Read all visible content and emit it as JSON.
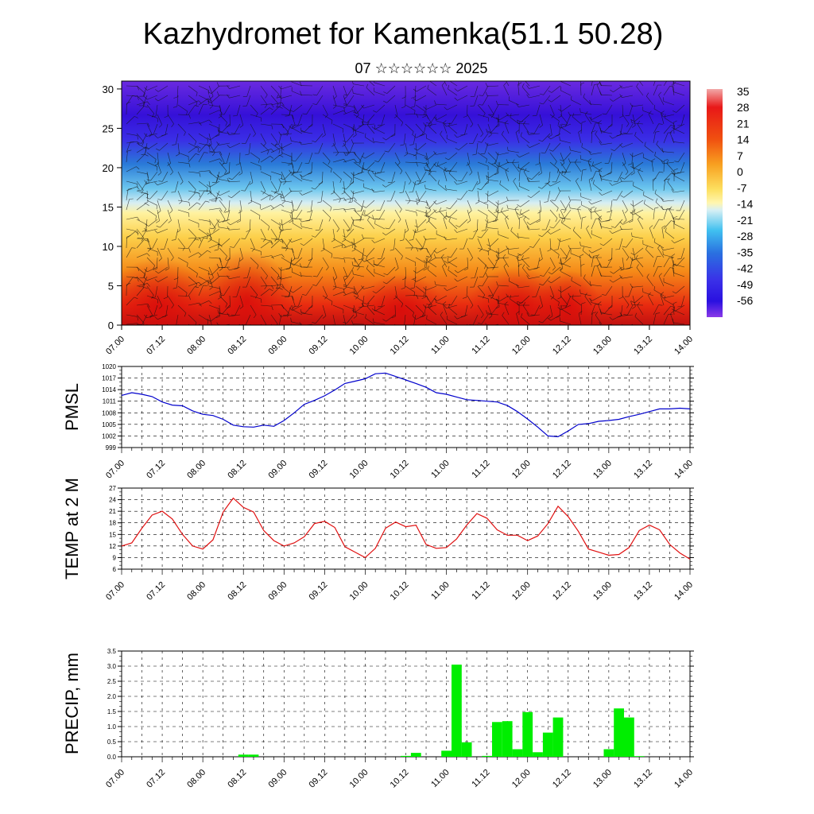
{
  "title": "Kazhydromet for Kamenka(51.1 50.28)",
  "subtitle": "07 ☆☆☆☆☆☆ 2025",
  "time_ticks": [
    "07.00",
    "07.12",
    "08.00",
    "08.12",
    "09.00",
    "09.12",
    "10.00",
    "10.12",
    "11.00",
    "11.12",
    "12.00",
    "12.12",
    "13.00",
    "13.12",
    "14.00"
  ],
  "chart_data": [
    {
      "type": "heatmap",
      "title": "Kazhydromet for Kamenka(51.1 50.28)",
      "subtitle": "07 ☆☆☆☆☆☆ 2025",
      "x_ticks": [
        "07.00",
        "07.12",
        "08.00",
        "08.12",
        "09.00",
        "09.12",
        "10.00",
        "10.12",
        "11.00",
        "11.12",
        "12.00",
        "12.12",
        "13.00",
        "13.12",
        "14.00"
      ],
      "y_ticks": [
        0,
        5,
        10,
        15,
        20,
        25,
        30
      ],
      "ylim": [
        0,
        31
      ],
      "colorbar_labels": [
        "35",
        "28",
        "21",
        "14",
        "7",
        "0",
        "-7",
        "-14",
        "-21",
        "-28",
        "-35",
        "-42",
        "-49",
        "-56"
      ],
      "overlay": "wind barbs",
      "colors": {
        "warm": "#e01010",
        "mid": "#ffe566",
        "cold": "#4a1ae6"
      }
    },
    {
      "type": "line",
      "ylabel": "PMSL",
      "ylim": [
        999,
        1020
      ],
      "y_ticks": [
        999,
        1002,
        1005,
        1008,
        1011,
        1014,
        1017,
        1020
      ],
      "x_ticks": [
        "07.00",
        "07.12",
        "08.00",
        "08.12",
        "09.00",
        "09.12",
        "10.00",
        "10.12",
        "11.00",
        "11.12",
        "12.00",
        "12.12",
        "13.00",
        "13.12",
        "14.00"
      ],
      "color": "#0000cc",
      "grid": true,
      "x_hours": [
        0,
        3,
        6,
        9,
        12,
        15,
        18,
        21,
        24,
        27,
        30,
        33,
        36,
        39,
        42,
        45,
        48,
        51,
        54,
        57,
        60,
        63,
        66,
        69,
        72,
        75,
        78,
        81,
        84,
        87,
        90,
        93,
        96,
        99,
        102,
        105,
        108,
        111,
        114,
        117,
        120,
        123,
        126,
        129,
        132,
        135,
        138,
        141,
        144,
        147,
        150,
        153,
        156,
        159,
        162,
        165,
        168
      ],
      "values": [
        1012.5,
        1013.2,
        1012.8,
        1012.2,
        1010.8,
        1010.0,
        1009.8,
        1008.5,
        1007.6,
        1007.3,
        1006.3,
        1004.8,
        1004.4,
        1004.3,
        1004.8,
        1004.5,
        1006.0,
        1008.0,
        1010.2,
        1011.2,
        1012.4,
        1013.9,
        1015.6,
        1016.2,
        1016.8,
        1018.1,
        1018.3,
        1017.4,
        1016.5,
        1015.6,
        1014.6,
        1013.2,
        1012.8,
        1012.1,
        1011.4,
        1011.2,
        1011.0,
        1010.8,
        1009.9,
        1008.3,
        1006.4,
        1004.3,
        1002.0,
        1001.8,
        1003.3,
        1005.0,
        1005.2,
        1005.8,
        1006.0,
        1006.3,
        1007.0,
        1007.6,
        1008.3,
        1009.0,
        1009.0,
        1009.2,
        1009.0
      ]
    },
    {
      "type": "line",
      "ylabel": "TEMP at 2 M",
      "ylim": [
        6,
        27
      ],
      "y_ticks": [
        6,
        9,
        12,
        15,
        18,
        21,
        24,
        27
      ],
      "x_ticks": [
        "07.00",
        "07.12",
        "08.00",
        "08.12",
        "09.00",
        "09.12",
        "10.00",
        "10.12",
        "11.00",
        "11.12",
        "12.00",
        "12.12",
        "13.00",
        "13.12",
        "14.00"
      ],
      "color": "#e01010",
      "grid": true,
      "x_hours": [
        0,
        3,
        6,
        9,
        12,
        15,
        18,
        21,
        24,
        27,
        30,
        33,
        36,
        39,
        42,
        45,
        48,
        51,
        54,
        57,
        60,
        63,
        66,
        69,
        72,
        75,
        78,
        81,
        84,
        87,
        90,
        93,
        96,
        99,
        102,
        105,
        108,
        111,
        114,
        117,
        120,
        123,
        126,
        129,
        132,
        135,
        138,
        141,
        144,
        147,
        150,
        153,
        156,
        159,
        162,
        165,
        168
      ],
      "values": [
        12.0,
        12.8,
        16.6,
        20.0,
        21.0,
        19.0,
        15.0,
        12.0,
        11.2,
        13.6,
        20.8,
        24.4,
        22.0,
        20.8,
        16.0,
        13.4,
        12.0,
        12.8,
        14.4,
        17.8,
        18.4,
        16.8,
        11.8,
        10.4,
        9.0,
        11.4,
        16.6,
        18.2,
        17.0,
        17.4,
        12.4,
        11.4,
        11.6,
        13.8,
        17.4,
        20.4,
        19.2,
        16.2,
        14.8,
        14.8,
        13.4,
        14.6,
        17.8,
        22.3,
        19.6,
        15.8,
        11.2,
        10.4,
        9.6,
        9.8,
        11.6,
        16.0,
        17.4,
        16.2,
        12.4,
        10.2,
        8.6
      ]
    },
    {
      "type": "bar",
      "ylabel": "PRECIP, mm",
      "ylim": [
        0,
        3.5
      ],
      "y_ticks": [
        "0.0",
        "0.5",
        "1.0",
        "1.5",
        "2.0",
        "2.5",
        "3.0",
        "3.5"
      ],
      "x_ticks": [
        "07.00",
        "07.12",
        "08.00",
        "08.12",
        "09.00",
        "09.12",
        "10.00",
        "10.12",
        "11.00",
        "11.12",
        "12.00",
        "12.12",
        "13.00",
        "13.12",
        "14.00"
      ],
      "color": "#00ee00",
      "grid": true,
      "x_hours": [
        0,
        3,
        6,
        9,
        12,
        15,
        18,
        21,
        24,
        27,
        30,
        33,
        36,
        39,
        42,
        45,
        48,
        51,
        54,
        57,
        60,
        63,
        66,
        69,
        72,
        75,
        78,
        81,
        84,
        87,
        90,
        93,
        96,
        99,
        102,
        105,
        108,
        111,
        114,
        117,
        120,
        123,
        126,
        129,
        132,
        135,
        138,
        141,
        144,
        147,
        150,
        153,
        156,
        159,
        162,
        165,
        168
      ],
      "values": [
        0,
        0,
        0,
        0,
        0,
        0,
        0,
        0,
        0,
        0,
        0,
        0,
        0.07,
        0.07,
        0,
        0,
        0,
        0,
        0,
        0,
        0,
        0,
        0,
        0,
        0,
        0,
        0,
        0,
        0.03,
        0.13,
        0,
        0,
        0.2,
        3.05,
        0.48,
        0,
        0.03,
        1.15,
        1.18,
        0.25,
        1.48,
        0.15,
        0.8,
        1.3,
        0,
        0,
        0,
        0,
        0.25,
        1.6,
        1.3,
        0.02,
        0,
        0,
        0,
        0,
        0
      ]
    }
  ]
}
